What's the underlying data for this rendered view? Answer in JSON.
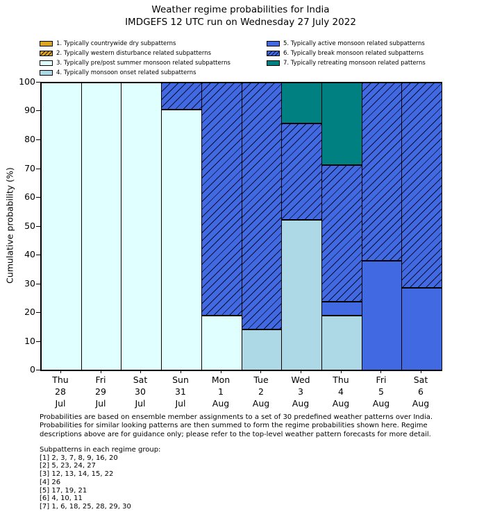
{
  "title": {
    "line1": "Weather regime probabilities for India",
    "line2": "IMDGEFS 12 UTC run on Wednesday 27 July 2022"
  },
  "chart_data": {
    "type": "bar",
    "stacked": true,
    "title": "Weather regime probabilities for India",
    "subtitle": "IMDGEFS 12 UTC run on Wednesday 27 July 2022",
    "xlabel": "",
    "ylabel": "Cumulative probability (%)",
    "ylim": [
      0,
      100
    ],
    "yticks": [
      0,
      10,
      20,
      30,
      40,
      50,
      60,
      70,
      80,
      90,
      100
    ],
    "grid": false,
    "legend_position": "top, two columns above plot",
    "categories": [
      [
        "Thu",
        "28",
        "Jul"
      ],
      [
        "Fri",
        "29",
        "Jul"
      ],
      [
        "Sat",
        "30",
        "Jul"
      ],
      [
        "Sun",
        "31",
        "Jul"
      ],
      [
        "Mon",
        "1",
        "Aug"
      ],
      [
        "Tue",
        "2",
        "Aug"
      ],
      [
        "Wed",
        "3",
        "Aug"
      ],
      [
        "Thu",
        "4",
        "Aug"
      ],
      [
        "Fri",
        "5",
        "Aug"
      ],
      [
        "Sat",
        "6",
        "Aug"
      ]
    ],
    "series": [
      {
        "name": "1. Typically countrywide dry subpatterns",
        "color": "#DAA520",
        "hatch": false,
        "values": [
          0,
          0,
          0,
          0,
          0,
          0,
          0,
          0,
          0,
          0
        ]
      },
      {
        "name": "2. Typically western disturbance related subpatterns",
        "color": "#DAA520",
        "hatch": true,
        "values": [
          0,
          0,
          0,
          0,
          0,
          0,
          0,
          0,
          0,
          0
        ]
      },
      {
        "name": "3. Typically pre/post summer monsoon related subpatterns",
        "color": "#E0FFFF",
        "hatch": false,
        "values": [
          100,
          100,
          100,
          90.5,
          19.0,
          0,
          0,
          0,
          0,
          0
        ]
      },
      {
        "name": "4. Typically monsoon onset related subpatterns",
        "color": "#ADD8E6",
        "hatch": false,
        "values": [
          0,
          0,
          0,
          0,
          0,
          14.3,
          52.4,
          19.0,
          0,
          0
        ]
      },
      {
        "name": "5. Typically active monsoon related subpatterns",
        "color": "#4169E1",
        "hatch": false,
        "values": [
          0,
          0,
          0,
          0,
          0,
          0,
          0,
          4.8,
          38.1,
          28.6
        ]
      },
      {
        "name": "6. Typically break monsoon related subpatterns",
        "color": "#4169E1",
        "hatch": true,
        "values": [
          0,
          0,
          0,
          9.5,
          81.0,
          85.7,
          33.3,
          47.6,
          61.9,
          71.4
        ]
      },
      {
        "name": "7. Typically retreating monsoon related patterns",
        "color": "#008080",
        "hatch": false,
        "values": [
          0,
          0,
          0,
          0,
          0,
          0,
          14.3,
          28.6,
          0,
          0
        ]
      }
    ]
  },
  "footer_lines": [
    "Probabilities are based on ensemble member assignments to a set of 30 predefined weather patterns over India.",
    "Probabilities for similar looking patterns are then summed to form the regime probabilities shown here. Regime",
    "descriptions above are for guidance only; please refer to the top-level weather pattern forecasts for more detail."
  ],
  "subpatterns": {
    "header": "Subpatterns in each regime group:",
    "groups": [
      "[1] 2, 3, 7, 8, 9, 16, 20",
      "[2] 5, 23, 24, 27",
      "[3] 12, 13, 14, 15, 22",
      "[4] 26",
      "[5] 17, 19, 21",
      "[6] 4, 10, 11",
      "[7] 1, 6, 18, 25, 28, 29, 30"
    ]
  }
}
